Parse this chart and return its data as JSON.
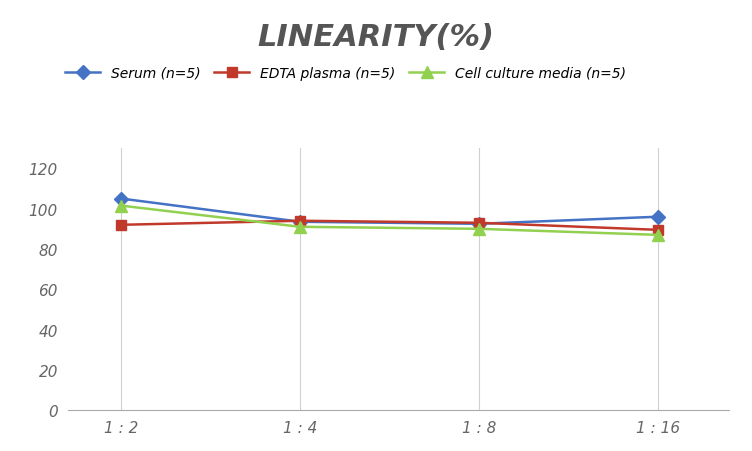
{
  "title": "LINEARITY(%)",
  "title_fontsize": 22,
  "title_fontstyle": "italic",
  "title_fontweight": "bold",
  "title_color": "#555555",
  "x_labels": [
    "1 : 2",
    "1 : 4",
    "1 : 8",
    "1 : 16"
  ],
  "x_positions": [
    0,
    1,
    2,
    3
  ],
  "series": [
    {
      "label": "Serum (n=5)",
      "values": [
        105,
        93.5,
        92.5,
        96
      ],
      "color": "#4472C4",
      "marker": "D",
      "marker_size": 7,
      "linewidth": 1.8
    },
    {
      "label": "EDTA plasma (n=5)",
      "values": [
        92,
        94,
        93,
        89.5
      ],
      "color": "#C0392B",
      "marker": "s",
      "marker_size": 7,
      "linewidth": 1.8
    },
    {
      "label": "Cell culture media (n=5)",
      "values": [
        101.5,
        91,
        90,
        87
      ],
      "color": "#92D050",
      "marker": "^",
      "marker_size": 8,
      "linewidth": 1.8
    }
  ],
  "ylim": [
    0,
    130
  ],
  "yticks": [
    0,
    20,
    40,
    60,
    80,
    100,
    120
  ],
  "grid_color": "#d0d0d0",
  "background_color": "#ffffff",
  "legend_fontsize": 10,
  "tick_fontsize": 11,
  "tick_color": "#666666"
}
